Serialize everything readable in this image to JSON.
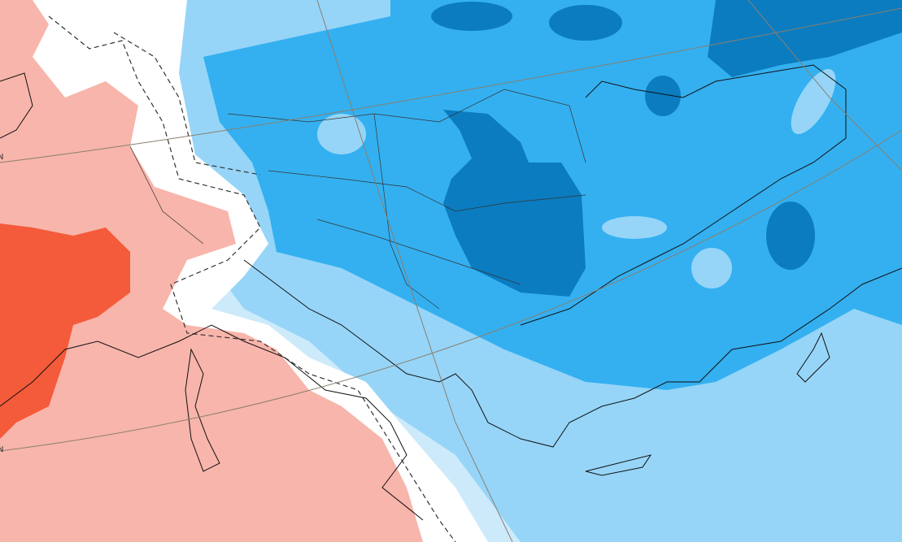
{
  "map": {
    "labels": [
      "N",
      "N"
    ]
  }
}
